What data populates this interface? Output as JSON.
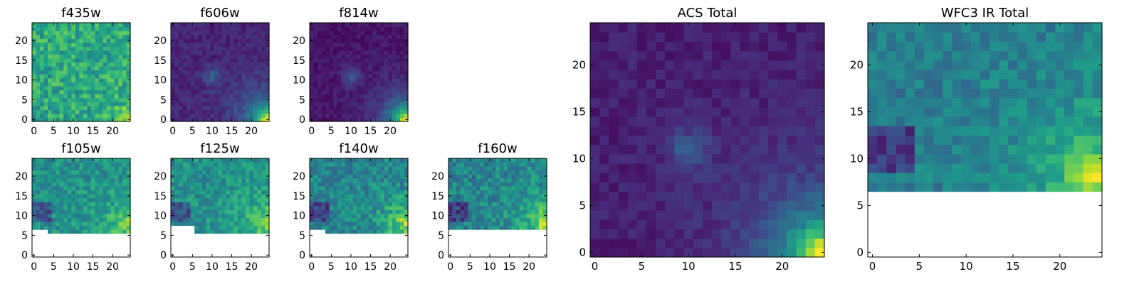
{
  "colormap": "viridis",
  "colormap_stops": [
    "#440154",
    "#482878",
    "#3e4989",
    "#31688e",
    "#26828e",
    "#1f9e89",
    "#35b779",
    "#6ece58",
    "#b5de2b",
    "#fde725"
  ],
  "chart_data": [
    {
      "type": "heatmap",
      "title": "f435w",
      "grid_size": 25,
      "xlim": [
        0,
        24
      ],
      "ylim": [
        0,
        24
      ],
      "x_ticks": [
        "0",
        "5",
        "10",
        "15",
        "20"
      ],
      "y_ticks": [
        "0",
        "5",
        "10",
        "15",
        "20"
      ],
      "style": "noise",
      "base": 0.6,
      "noise": 0.16,
      "corner": 0.4,
      "blob": 0.0,
      "bottom_gap": [],
      "seed": 11
    },
    {
      "type": "heatmap",
      "title": "f606w",
      "grid_size": 25,
      "xlim": [
        0,
        24
      ],
      "ylim": [
        0,
        24
      ],
      "x_ticks": [
        "0",
        "5",
        "10",
        "15",
        "20"
      ],
      "y_ticks": [
        "0",
        "5",
        "10",
        "15",
        "20"
      ],
      "style": "diffuse",
      "base": 0.1,
      "noise": 0.06,
      "corner": 0.9,
      "blob": 0.18,
      "bottom_gap": [],
      "seed": 23
    },
    {
      "type": "heatmap",
      "title": "f814w",
      "grid_size": 25,
      "xlim": [
        0,
        24
      ],
      "ylim": [
        0,
        24
      ],
      "x_ticks": [
        "0",
        "5",
        "10",
        "15",
        "20"
      ],
      "y_ticks": [
        "0",
        "5",
        "10",
        "15",
        "20"
      ],
      "style": "diffuse",
      "base": 0.05,
      "noise": 0.05,
      "corner": 0.95,
      "blob": 0.2,
      "bottom_gap": [],
      "seed": 37
    },
    null,
    {
      "type": "heatmap",
      "title": "f105w",
      "grid_size": 25,
      "xlim": [
        0,
        24
      ],
      "ylim": [
        0,
        24
      ],
      "x_ticks": [
        "0",
        "5",
        "10",
        "15",
        "20"
      ],
      "y_ticks": [
        "0",
        "5",
        "10",
        "15",
        "20"
      ],
      "style": "ir",
      "base": 0.5,
      "noise": 0.13,
      "corner": 0.35,
      "blob": 0.0,
      "bottom_gap": [
        7,
        4,
        6
      ],
      "seed": 41
    },
    {
      "type": "heatmap",
      "title": "f125w",
      "grid_size": 25,
      "xlim": [
        0,
        24
      ],
      "ylim": [
        0,
        24
      ],
      "x_ticks": [
        "0",
        "5",
        "10",
        "15",
        "20"
      ],
      "y_ticks": [
        "0",
        "5",
        "10",
        "15",
        "20"
      ],
      "style": "ir",
      "base": 0.5,
      "noise": 0.13,
      "corner": 0.4,
      "blob": 0.0,
      "bottom_gap": [
        8,
        6,
        6
      ],
      "seed": 53
    },
    {
      "type": "heatmap",
      "title": "f140w",
      "grid_size": 25,
      "xlim": [
        0,
        24
      ],
      "ylim": [
        0,
        24
      ],
      "x_ticks": [
        "0",
        "5",
        "10",
        "15",
        "20"
      ],
      "y_ticks": [
        "0",
        "5",
        "10",
        "15",
        "20"
      ],
      "style": "ir",
      "base": 0.45,
      "noise": 0.14,
      "corner": 0.45,
      "blob": 0.0,
      "bottom_gap": [
        7,
        4,
        6
      ],
      "seed": 67
    },
    {
      "type": "heatmap",
      "title": "f160w",
      "grid_size": 25,
      "xlim": [
        0,
        24
      ],
      "ylim": [
        0,
        24
      ],
      "x_ticks": [
        "0",
        "5",
        "10",
        "15",
        "20"
      ],
      "y_ticks": [
        "0",
        "5",
        "10",
        "15",
        "20"
      ],
      "style": "ir",
      "base": 0.45,
      "noise": 0.14,
      "corner": 0.5,
      "blob": 0.0,
      "bottom_gap": [
        7,
        0,
        7
      ],
      "seed": 79
    },
    {
      "type": "heatmap",
      "title": "ACS Total",
      "grid_size": 25,
      "xlim": [
        0,
        24
      ],
      "ylim": [
        0,
        24
      ],
      "x_ticks": [
        "0",
        "5",
        "10",
        "15",
        "20"
      ],
      "y_ticks": [
        "0",
        "5",
        "10",
        "15",
        "20"
      ],
      "style": "diffuse",
      "base": 0.08,
      "noise": 0.05,
      "corner": 0.95,
      "blob": 0.2,
      "bottom_gap": [],
      "seed": 97
    },
    {
      "type": "heatmap",
      "title": "WFC3 IR Total",
      "grid_size": 25,
      "xlim": [
        0,
        24
      ],
      "ylim": [
        0,
        24
      ],
      "x_ticks": [
        "0",
        "5",
        "10",
        "15",
        "20"
      ],
      "y_ticks": [
        "0",
        "5",
        "10",
        "15",
        "20"
      ],
      "style": "ir",
      "base": 0.42,
      "noise": 0.1,
      "corner": 0.55,
      "blob": 0.0,
      "bottom_gap": [
        7,
        4,
        7
      ],
      "seed": 103
    }
  ]
}
